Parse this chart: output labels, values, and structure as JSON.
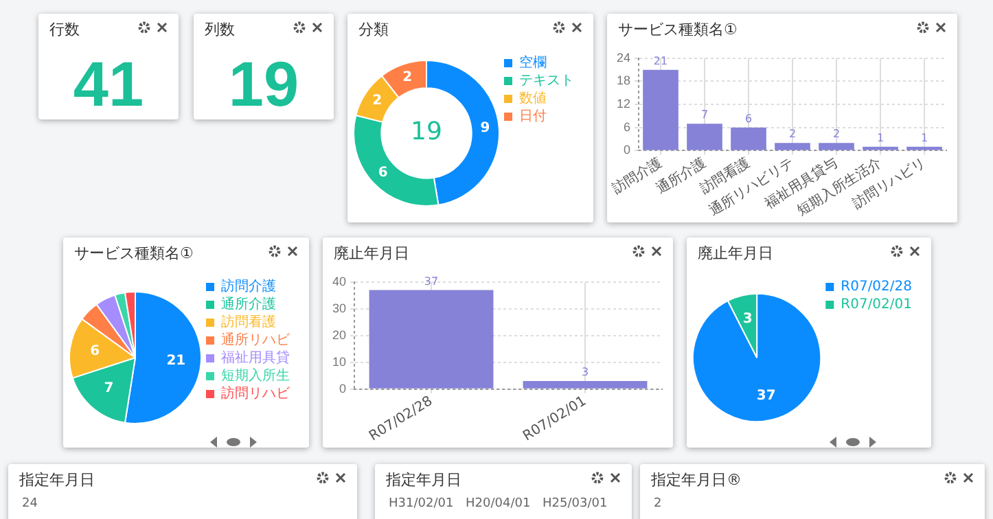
{
  "chart_data": [
    {
      "type": "other",
      "title": "行数",
      "annotations": [
        "41"
      ],
      "color": "#1bbf98"
    },
    {
      "type": "other",
      "title": "列数",
      "annotations": [
        "19"
      ],
      "color": "#1bbf98"
    },
    {
      "type": "donut",
      "title": "分類",
      "categories": [
        "空欄",
        "テキスト",
        "数値",
        "日付"
      ],
      "values": [
        9,
        6,
        2,
        2
      ],
      "colors": [
        "#0a8cff",
        "#1bc49b",
        "#fbb829",
        "#ff7f47"
      ],
      "data_labels": true,
      "legend": "top right",
      "annotations": [
        "19"
      ]
    },
    {
      "type": "bar",
      "title": "サービス種類名①",
      "categories": [
        "訪問介護",
        "通所介護",
        "訪問看護",
        "通所リハビリテ",
        "福祉用具貸与",
        "短期入所生活介",
        "訪問リハビリ"
      ],
      "values": [
        21,
        7,
        6,
        2,
        2,
        1,
        1
      ],
      "color": "#8582d8",
      "ylim": [
        0,
        24
      ],
      "yticks": [
        0,
        6,
        12,
        18,
        24
      ],
      "grid": true,
      "data_labels": true
    },
    {
      "type": "pie",
      "title": "サービス種類名①",
      "categories": [
        "訪問介護",
        "通所介護",
        "訪問看護",
        "通所リハビ",
        "福祉用具貸",
        "短期入所生",
        "訪問リハビ"
      ],
      "values": [
        21,
        7,
        6,
        2,
        2,
        1,
        1
      ],
      "colors": [
        "#0a8cff",
        "#1bc49b",
        "#fbb829",
        "#ff7f47",
        "#a58cff",
        "#3ad6ab",
        "#ff4d4f"
      ],
      "value_labels": [
        "21",
        "7",
        "6",
        null,
        null,
        null,
        null
      ],
      "legend": "top right"
    },
    {
      "type": "bar",
      "title": "廃止年月日",
      "categories": [
        "R07/02/28",
        "R07/02/01"
      ],
      "values": [
        37,
        3
      ],
      "color": "#8582d8",
      "ylim": [
        0,
        40
      ],
      "yticks": [
        0,
        10,
        20,
        30,
        40
      ],
      "grid": true,
      "data_labels": true
    },
    {
      "type": "pie",
      "title": "廃止年月日",
      "categories": [
        "R07/02/28",
        "R07/02/01"
      ],
      "values": [
        37,
        3
      ],
      "colors": [
        "#0a8cff",
        "#1bc49b"
      ],
      "data_labels": true,
      "legend": "top right"
    },
    {
      "type": "other",
      "title": "指定年月日",
      "annotations": [
        "24"
      ]
    },
    {
      "type": "other",
      "title": "指定年月日",
      "annotations": [
        "H31/02/01",
        "H20/04/01",
        "H25/03/01"
      ]
    },
    {
      "type": "other",
      "title": "指定年月日®",
      "annotations": [
        "2"
      ]
    }
  ]
}
